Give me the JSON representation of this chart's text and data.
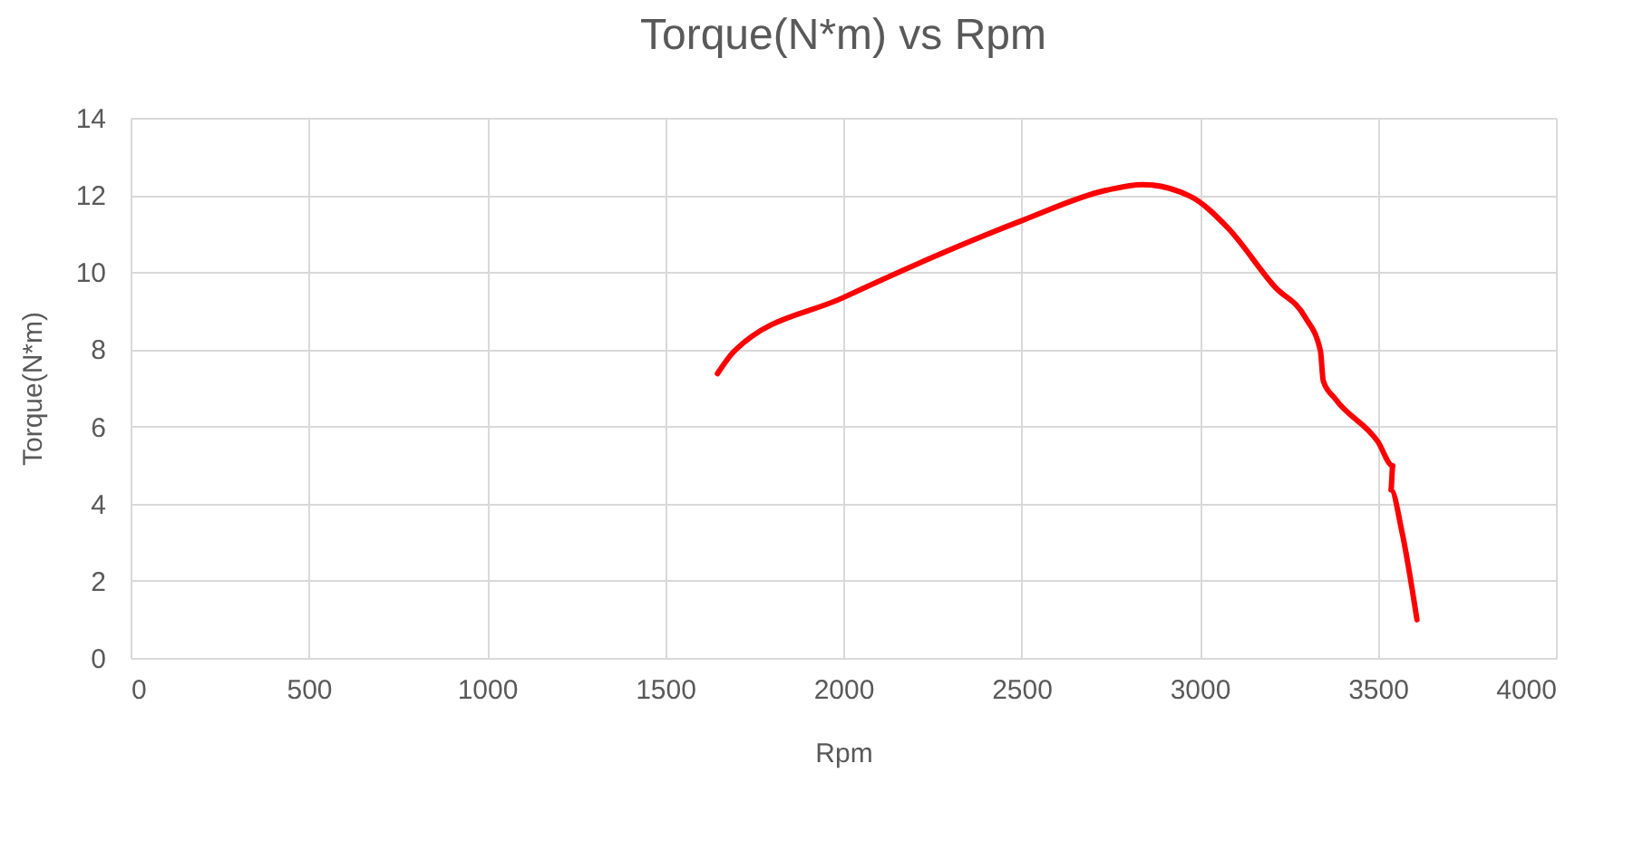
{
  "chart_data": {
    "type": "line",
    "title": "Torque(N*m) vs Rpm",
    "xlabel": "Rpm",
    "ylabel": "Torque(N*m)",
    "x": [
      1647,
      1695,
      2000,
      2500,
      2737,
      2839,
      2975,
      3076,
      3212,
      3297,
      3339,
      3347,
      3381,
      3500,
      3542,
      3537,
      3568,
      3610
    ],
    "series": [
      {
        "color": "#ff0000",
        "values": [
          7.37,
          7.96,
          9.34,
          11.33,
          12.12,
          12.27,
          11.96,
          11.18,
          9.61,
          8.82,
          7.96,
          7.18,
          6.71,
          5.61,
          4.98,
          4.36,
          3.26,
          0.99
        ]
      }
    ],
    "xlim": [
      0,
      4000
    ],
    "xticks": [
      0,
      500,
      1000,
      1500,
      2000,
      2500,
      3000,
      3500,
      4000
    ],
    "ylim": [
      0,
      14
    ],
    "yticks": [
      0,
      2,
      4,
      6,
      8,
      10,
      12,
      14
    ],
    "grid": true,
    "legend": false,
    "marker": "none",
    "line_style": "solid"
  }
}
